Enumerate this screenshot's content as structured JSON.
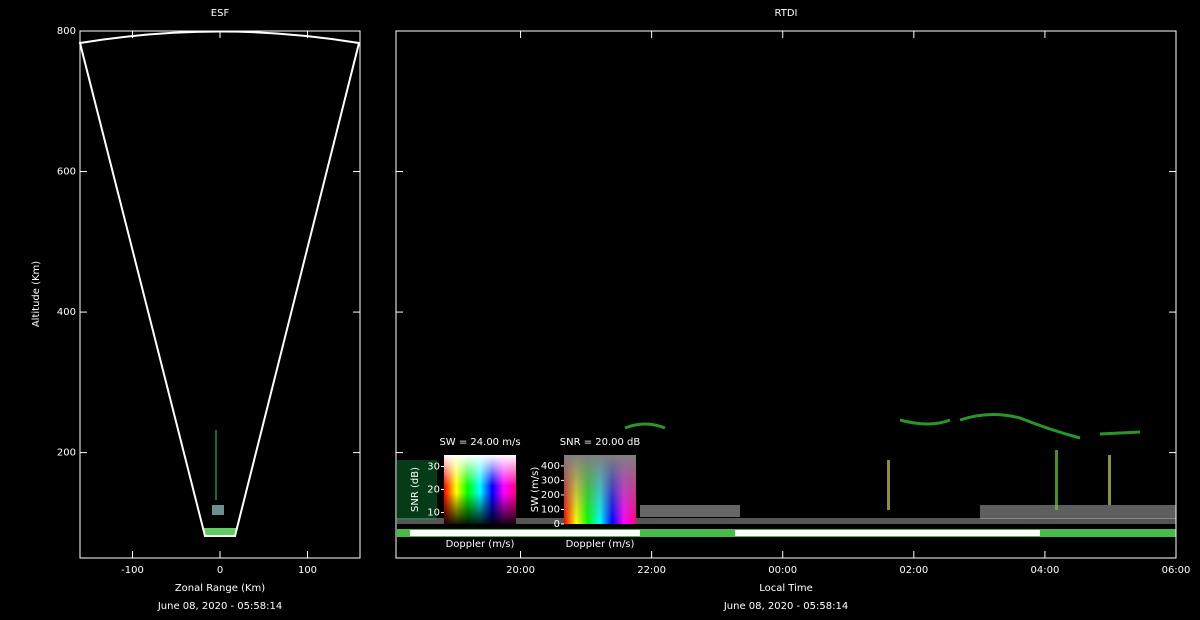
{
  "chart_data": [
    {
      "type": "fan",
      "title": "ESF",
      "xlabel": "Zonal Range (Km)",
      "ylabel": "Altitude (Km)",
      "xlim": [
        -160,
        160
      ],
      "xticks": [
        -100,
        0,
        100
      ],
      "ylim": [
        50,
        800
      ],
      "yticks": [
        200,
        400,
        600,
        800
      ],
      "timestamp": "June 08, 2020 - 05:58:14"
    },
    {
      "type": "rtdi",
      "title": "RTDI",
      "xlabel": "Local Time",
      "xlim": [
        18.1,
        30
      ],
      "xticks": [
        {
          "value": 20,
          "label": "20:00"
        },
        {
          "value": 22,
          "label": "22:00"
        },
        {
          "value": 24,
          "label": "00:00"
        },
        {
          "value": 26,
          "label": "02:00"
        },
        {
          "value": 28,
          "label": "04:00"
        },
        {
          "value": 30,
          "label": "06:00"
        }
      ],
      "ylim": [
        50,
        800
      ],
      "timestamp": "June 08, 2020 - 05:58:14",
      "colorkeys": [
        {
          "title": "SW = 24.00 m/s",
          "ylabel": "SNR (dB)",
          "xlabel": "Doppler (m/s)",
          "ylim": [
            5,
            35
          ],
          "yticks": [
            10,
            20,
            30
          ]
        },
        {
          "title": "SNR = 20.00 dB",
          "ylabel": "SW (m/s)",
          "xlabel": "Doppler (m/s)",
          "ylim": [
            0,
            475
          ],
          "yticks": [
            0,
            100,
            200,
            300,
            400
          ]
        }
      ]
    }
  ]
}
